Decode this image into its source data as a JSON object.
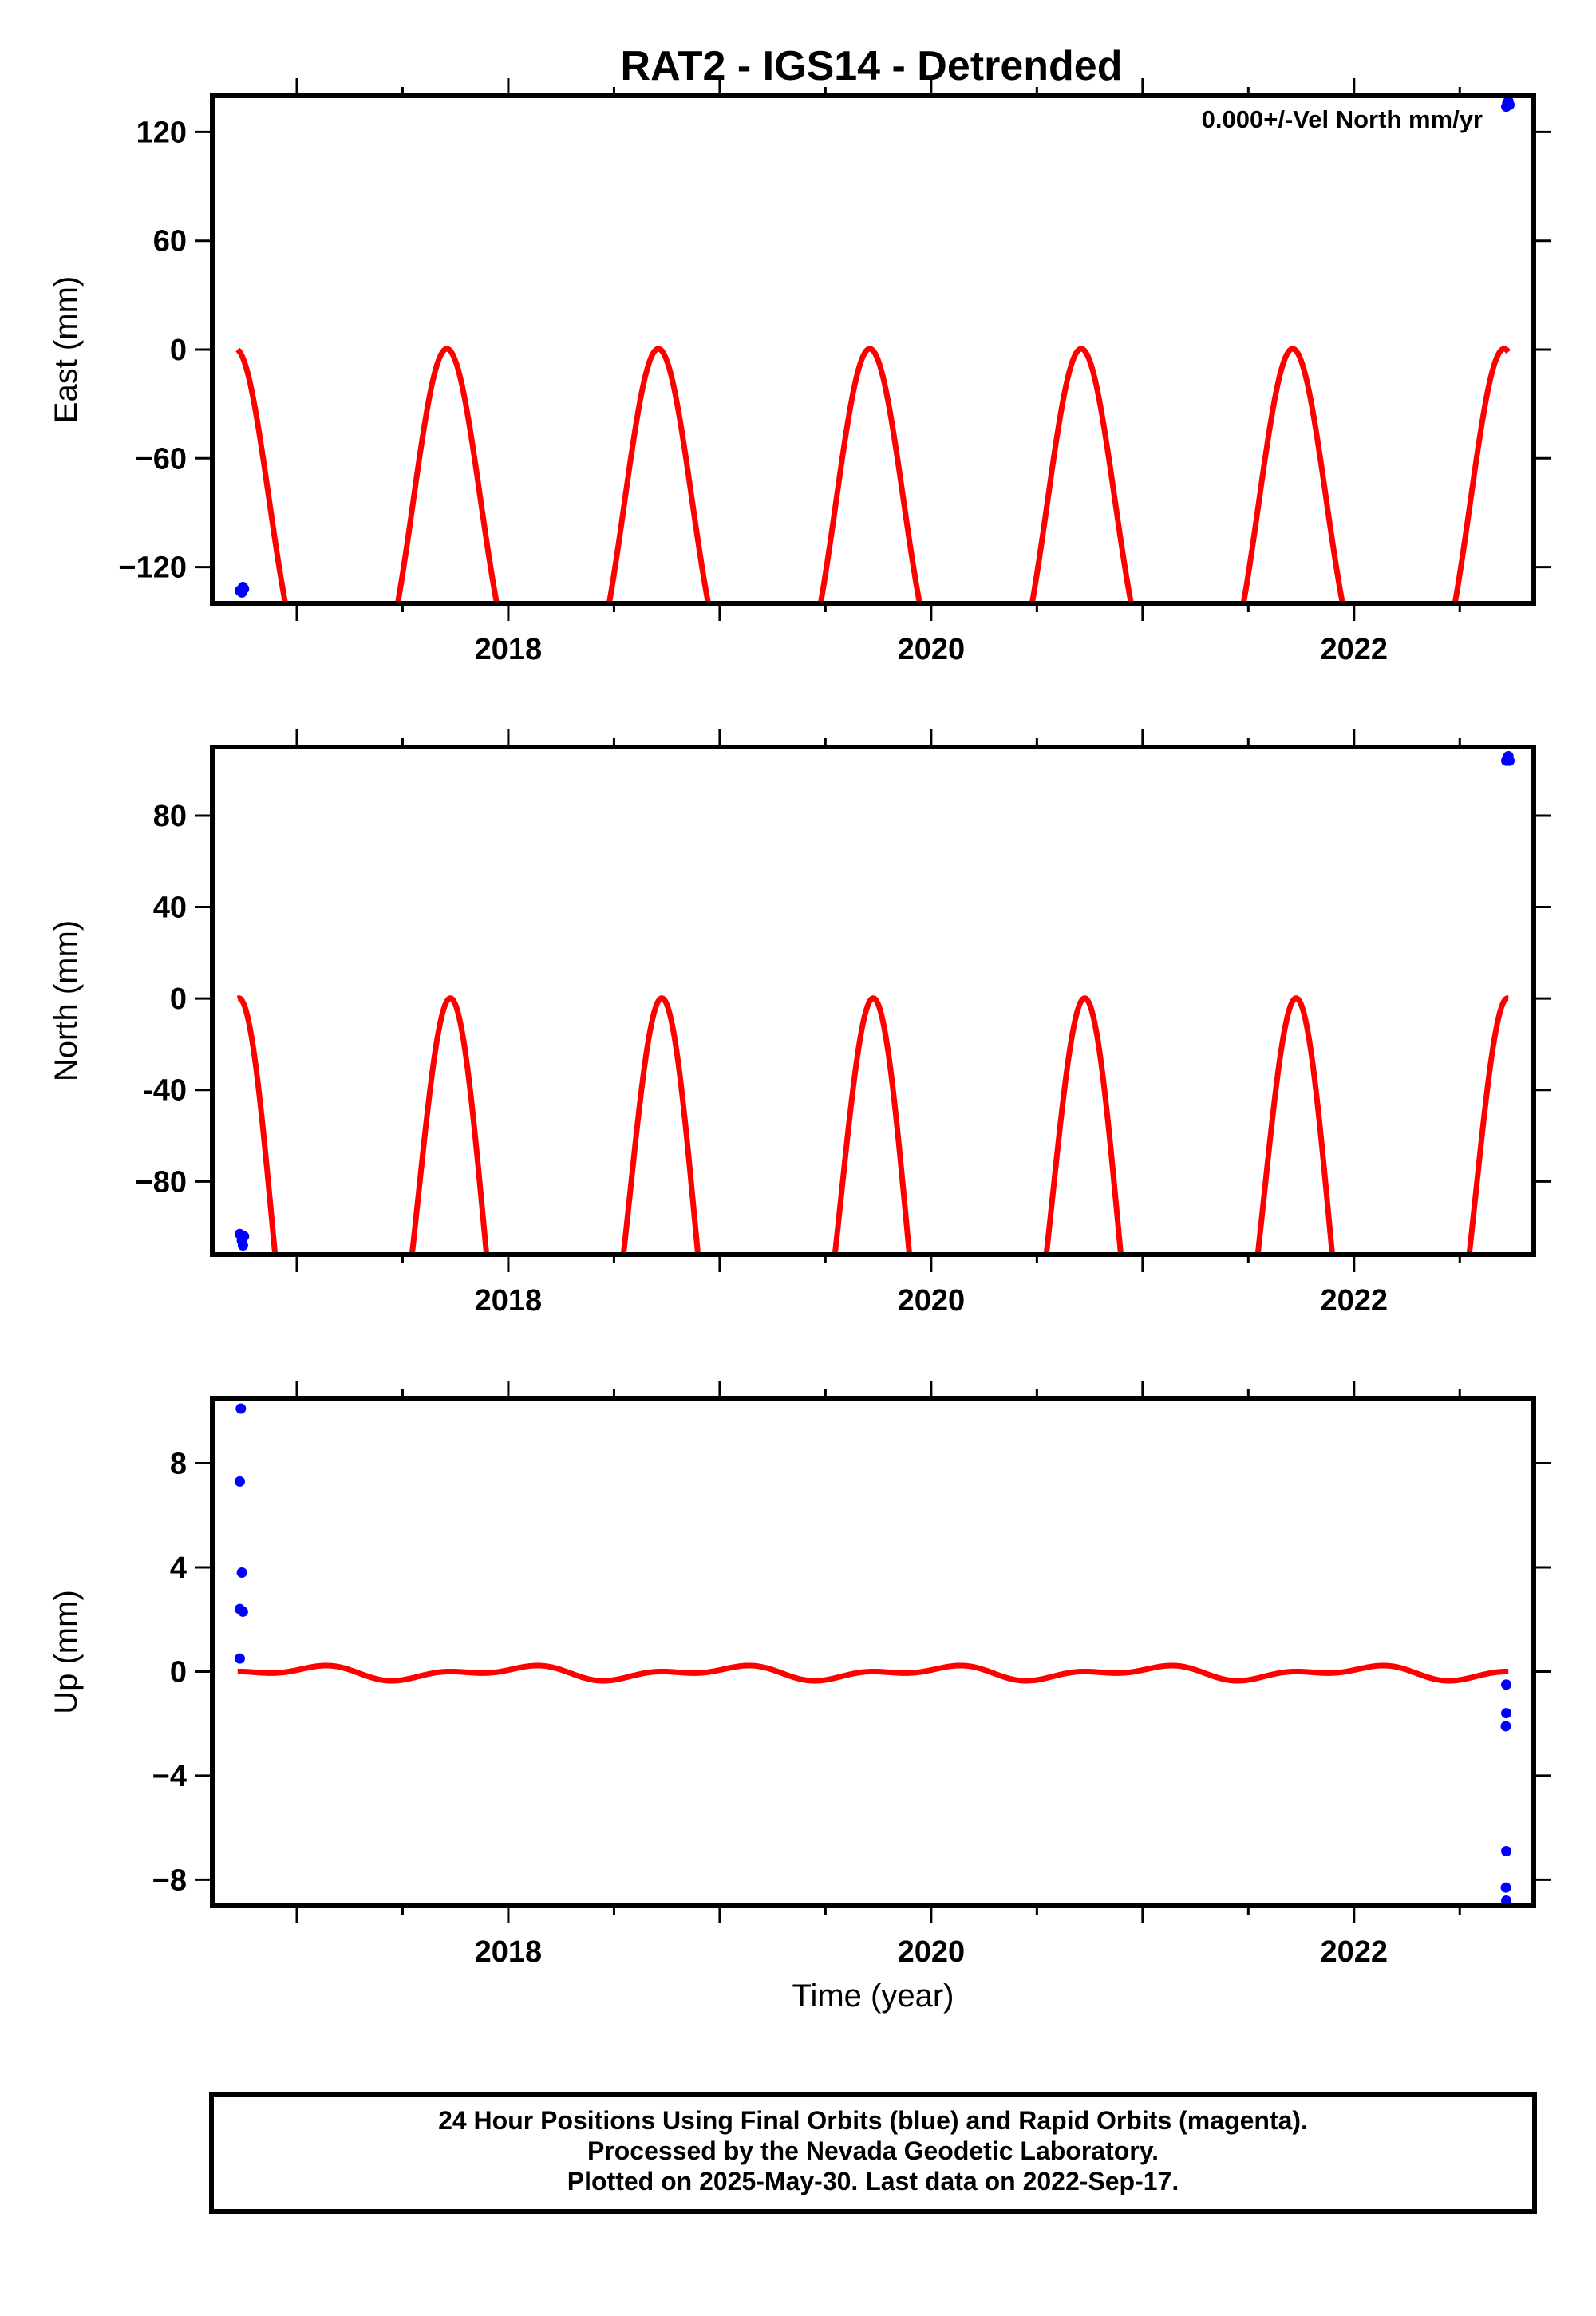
{
  "title": "RAT2 - IGS14 - Detrended",
  "colors": {
    "final_orbits": "#0000ff",
    "model": "#ff0000",
    "rapid_orbits": "#ff00ff"
  },
  "chart_data": [
    {
      "type": "scatter",
      "panel": "east",
      "xlabel": "",
      "ylabel": "East (mm)",
      "annotation": "0.000+/-Vel North mm/yr",
      "xlim": [
        2016.6,
        2022.85
      ],
      "ylim": [
        -140,
        140
      ],
      "xticks": [
        2018,
        2020,
        2022
      ],
      "yticks": [
        -120,
        -60,
        0,
        60,
        120
      ],
      "ytick_labels": [
        "−120",
        "−60",
        "0",
        "60",
        "120"
      ],
      "model": {
        "name": "model",
        "color": "#ff0000",
        "x_start": 2016.72,
        "x_end": 2022.73,
        "a1": 91.1,
        "b1": -4.7,
        "a2": 29.1,
        "b2": -4.5
      },
      "points": [
        {
          "x": 2016.73,
          "y": -133
        },
        {
          "x": 2016.74,
          "y": -134
        },
        {
          "x": 2016.745,
          "y": -131
        },
        {
          "x": 2016.75,
          "y": -132
        },
        {
          "x": 2022.72,
          "y": 134
        },
        {
          "x": 2022.725,
          "y": 136
        },
        {
          "x": 2022.73,
          "y": 137
        },
        {
          "x": 2022.735,
          "y": 135
        }
      ]
    },
    {
      "type": "scatter",
      "panel": "north",
      "xlabel": "",
      "ylabel": "North (mm)",
      "xlim": [
        2016.6,
        2022.85
      ],
      "ylim": [
        -112,
        110
      ],
      "xticks": [
        2018,
        2020,
        2022
      ],
      "yticks": [
        -80,
        -40,
        0,
        40,
        80
      ],
      "ytick_labels": [
        "−80",
        "-40",
        "0",
        "40",
        "80"
      ],
      "model": {
        "name": "model",
        "color": "#ff0000",
        "x_start": 2016.72,
        "x_end": 2022.73,
        "a1": 92.5,
        "b1": -5.8,
        "a2": 38.0,
        "b2": 7.5
      },
      "points": [
        {
          "x": 2016.73,
          "y": -103
        },
        {
          "x": 2016.74,
          "y": -106
        },
        {
          "x": 2016.745,
          "y": -108
        },
        {
          "x": 2016.75,
          "y": -104
        },
        {
          "x": 2022.72,
          "y": 104
        },
        {
          "x": 2022.725,
          "y": 105
        },
        {
          "x": 2022.73,
          "y": 106
        },
        {
          "x": 2022.735,
          "y": 104
        }
      ]
    },
    {
      "type": "scatter",
      "panel": "up",
      "xlabel": "Time (year)",
      "ylabel": "Up (mm)",
      "xlim": [
        2016.6,
        2022.85
      ],
      "ylim": [
        -9,
        10.5
      ],
      "xticks": [
        2018,
        2020,
        2022
      ],
      "yticks": [
        -8,
        -4,
        0,
        4,
        8
      ],
      "ytick_labels": [
        "−8",
        "−4",
        "0",
        "4",
        "8"
      ],
      "model": {
        "name": "model",
        "color": "#ff0000",
        "x_start": 2016.72,
        "x_end": 2022.73,
        "a1": -0.07,
        "b1": 0.18,
        "a2": 0.12,
        "b2": -0.08
      },
      "points": [
        {
          "x": 2016.735,
          "y": 10.1
        },
        {
          "x": 2016.73,
          "y": 7.3
        },
        {
          "x": 2016.74,
          "y": 3.8
        },
        {
          "x": 2016.73,
          "y": 2.4
        },
        {
          "x": 2016.745,
          "y": 2.3
        },
        {
          "x": 2016.73,
          "y": 0.5
        },
        {
          "x": 2022.72,
          "y": -0.5
        },
        {
          "x": 2022.72,
          "y": -1.6
        },
        {
          "x": 2022.718,
          "y": -2.1
        },
        {
          "x": 2022.72,
          "y": -6.9
        },
        {
          "x": 2022.718,
          "y": -8.3
        },
        {
          "x": 2022.72,
          "y": -8.8
        }
      ]
    }
  ],
  "footer": {
    "line1": "24 Hour Positions Using Final Orbits (blue) and Rapid Orbits (magenta).",
    "line2": "Processed by the Nevada Geodetic Laboratory.",
    "line3": "Plotted on 2025-May-30. Last data on 2022-Sep-17."
  }
}
